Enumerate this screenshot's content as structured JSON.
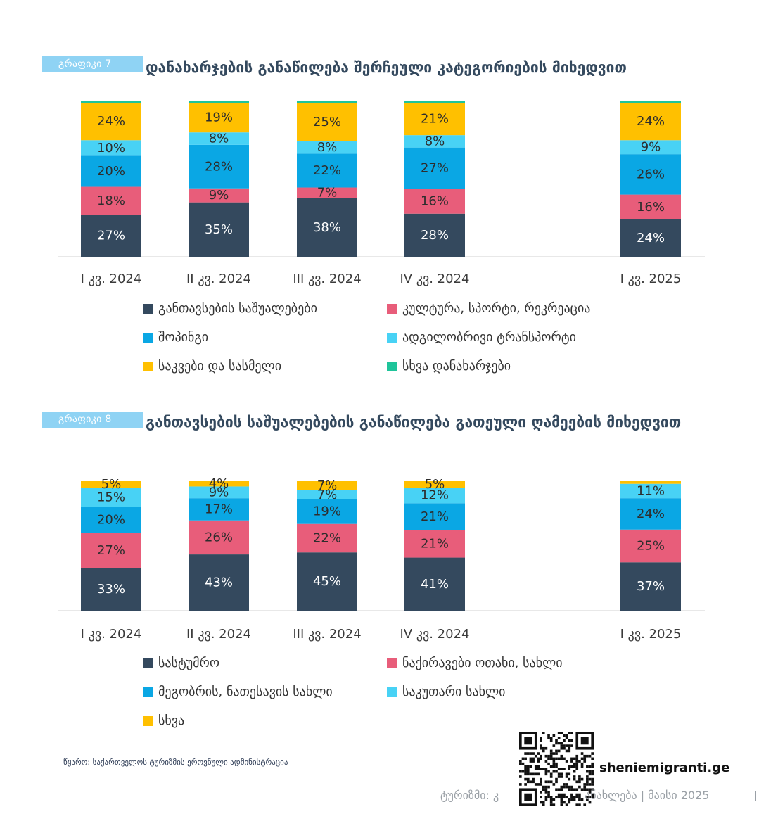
{
  "chart1": {
    "tag": "გრაფიკი 7",
    "title": "დანახარჯების განაწილება შერჩეული კატეგორიების მიხედვით",
    "legend_items": [
      {
        "label": "განთავსების საშუალებები",
        "color": "#34495e"
      },
      {
        "label": "კულტურა, სპორტი, რეკრეაცია",
        "color": "#e85d7a"
      },
      {
        "label": "შოპინგი",
        "color": "#0aa7e4"
      },
      {
        "label": "ადგილობრივი ტრანსპორტი",
        "color": "#48d2f5"
      },
      {
        "label": "საკვები და სასმელი",
        "color": "#ffc000"
      },
      {
        "label": "სხვა დანახარჯები",
        "color": "#1fc49a"
      }
    ]
  },
  "chart2": {
    "tag": "გრაფიკი 8",
    "title": "განთავსების საშუალებების განაწილება გათეული ღამეების მიხედვით",
    "legend_items": [
      {
        "label": "სასტუმრო",
        "color": "#34495e"
      },
      {
        "label": "ნაქირავები ოთახი, სახლი",
        "color": "#e85d7a"
      },
      {
        "label": "მეგობრის, ნათესავის სახლი",
        "color": "#0aa7e4"
      },
      {
        "label": "საკუთარი სახლი",
        "color": "#48d2f5"
      },
      {
        "label": "სხვა",
        "color": "#ffc000"
      }
    ]
  },
  "chart_data": [
    {
      "type": "bar",
      "stacked": true,
      "categories": [
        "I კვ. 2024",
        "II კვ. 2024",
        "III კვ. 2024",
        "IV კვ. 2024",
        "I კვ. 2025"
      ],
      "series": [
        {
          "name": "განთავსების საშუალებები",
          "color": "#34495e",
          "values": [
            27,
            35,
            38,
            28,
            24
          ],
          "labels": [
            "27%",
            "35%",
            "38%",
            "28%",
            "24%"
          ]
        },
        {
          "name": "კულტურა, სპორტი, რეკრეაცია",
          "color": "#e85d7a",
          "values": [
            18,
            9,
            7,
            16,
            16
          ],
          "labels": [
            "18%",
            "9%",
            "7%",
            "16%",
            "16%"
          ]
        },
        {
          "name": "შოპინგი",
          "color": "#0aa7e4",
          "values": [
            20,
            28,
            22,
            27,
            26
          ],
          "labels": [
            "20%",
            "28%",
            "22%",
            "27%",
            "26%"
          ]
        },
        {
          "name": "ადგილობრივი ტრანსპორტი",
          "color": "#48d2f5",
          "values": [
            10,
            8,
            8,
            8,
            9
          ],
          "labels": [
            "10%",
            "8%",
            "8%",
            "8%",
            "9%"
          ]
        },
        {
          "name": "საკვები და სასმელი",
          "color": "#ffc000",
          "values": [
            24,
            19,
            25,
            21,
            24
          ],
          "labels": [
            "24%",
            "19%",
            "25%",
            "21%",
            "24%"
          ]
        },
        {
          "name": "სხვა დანახარჯები",
          "color": "#1fc49a",
          "values": [
            1,
            1,
            1,
            1,
            1
          ],
          "labels": [
            "",
            "",
            "",
            "",
            ""
          ]
        }
      ]
    },
    {
      "type": "bar",
      "stacked": true,
      "categories": [
        "I კვ. 2024",
        "II კვ. 2024",
        "III კვ. 2024",
        "IV კვ. 2024",
        "I კვ. 2025"
      ],
      "series": [
        {
          "name": "სასტუმრო",
          "color": "#34495e",
          "values": [
            33,
            43,
            45,
            41,
            37
          ],
          "labels": [
            "33%",
            "43%",
            "45%",
            "41%",
            "37%"
          ]
        },
        {
          "name": "ნაქირავები ოთახი, სახლი",
          "color": "#e85d7a",
          "values": [
            27,
            26,
            22,
            21,
            25
          ],
          "labels": [
            "27%",
            "26%",
            "22%",
            "21%",
            "25%"
          ]
        },
        {
          "name": "მეგობრის, ნათესავის სახლი",
          "color": "#0aa7e4",
          "values": [
            20,
            17,
            19,
            21,
            24
          ],
          "labels": [
            "20%",
            "17%",
            "19%",
            "21%",
            "24%"
          ]
        },
        {
          "name": "საკუთარი სახლი",
          "color": "#48d2f5",
          "values": [
            15,
            9,
            7,
            12,
            11
          ],
          "labels": [
            "15%",
            "9%",
            "7%",
            "12%",
            "11%"
          ]
        },
        {
          "name": "სხვა",
          "color": "#ffc000",
          "values": [
            5,
            4,
            7,
            5,
            2
          ],
          "labels": [
            "5%",
            "4%",
            "7%",
            "5%",
            ""
          ]
        }
      ]
    }
  ],
  "footer": {
    "source": "წყარო: საქართველოს ტურიზმის ეროვნული ადმინისტრაცია",
    "site": "sheniemigranti.ge",
    "page_label": "ტურიზმი: კ",
    "page_label_tail": "ანახლება | მაისი 2025",
    "qr_icon": "qr-code-icon"
  }
}
